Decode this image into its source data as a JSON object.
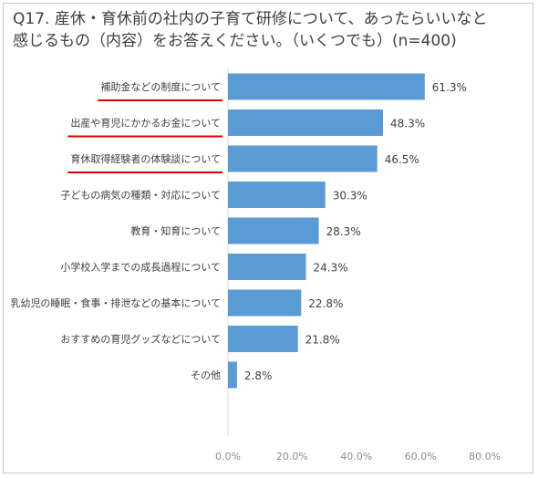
{
  "title": {
    "line1": "Q17. 産休・育休前の社内の子育て研修について、あったらいいなと",
    "line2": "感じるもの（内容）をお答えください。（いくつでも）(n=400)"
  },
  "chart_data": {
    "type": "bar",
    "orientation": "horizontal",
    "categories": [
      "補助金などの制度について",
      "出産や育児にかかるお金について",
      "育休取得経験者の体験談について",
      "子どもの病気の種類・対応について",
      "教育・知育について",
      "小学校入学までの成長過程について",
      "乳幼児の睡眠・食事・排泄などの基本について",
      "おすすめの育児グッズなどについて",
      "その他"
    ],
    "values": [
      61.3,
      48.3,
      46.5,
      30.3,
      28.3,
      24.3,
      22.8,
      21.8,
      2.8
    ],
    "value_labels": [
      "61.3%",
      "48.3%",
      "46.5%",
      "30.3%",
      "28.3%",
      "24.3%",
      "22.8%",
      "21.8%",
      "2.8%"
    ],
    "xlim": [
      0,
      80
    ],
    "xticks": [
      0,
      20,
      40,
      60,
      80
    ],
    "xtick_labels": [
      "0.0%",
      "20.0%",
      "40.0%",
      "60.0%",
      "80.0%"
    ],
    "underlined_categories": [
      0,
      1,
      2
    ],
    "bar_color": "#5b9bd5",
    "underline_color": "#e00000",
    "grid": false,
    "legend": false
  }
}
